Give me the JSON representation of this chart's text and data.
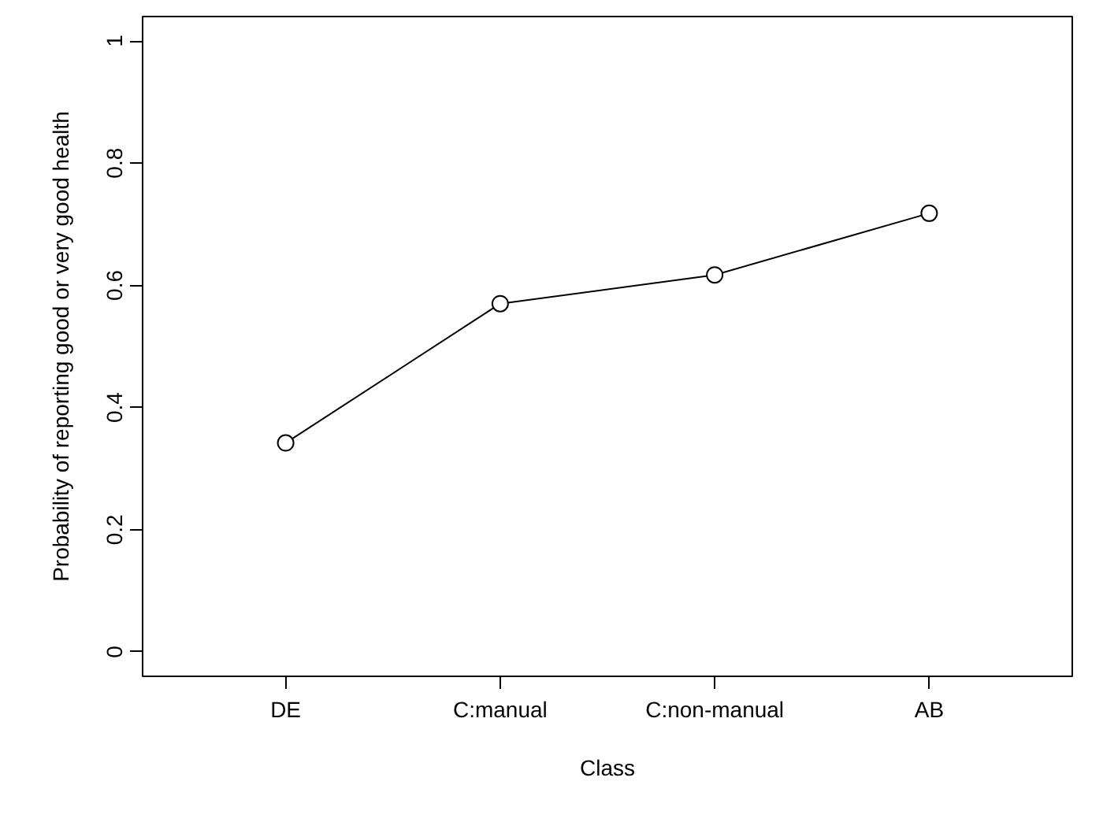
{
  "chart_data": {
    "type": "line",
    "xlabel": "Class",
    "ylabel": "Probability of reporting good or very good health",
    "categories": [
      "DE",
      "C:manual",
      "C:non-manual",
      "AB"
    ],
    "values": [
      0.342,
      0.57,
      0.617,
      0.718
    ],
    "color": "#000000",
    "marker": "circle",
    "line_style": "solid",
    "ylim": [
      -0.04,
      1.04
    ],
    "yticks": [
      0,
      0.2,
      0.4,
      0.6,
      0.8,
      1
    ],
    "grid": false
  }
}
